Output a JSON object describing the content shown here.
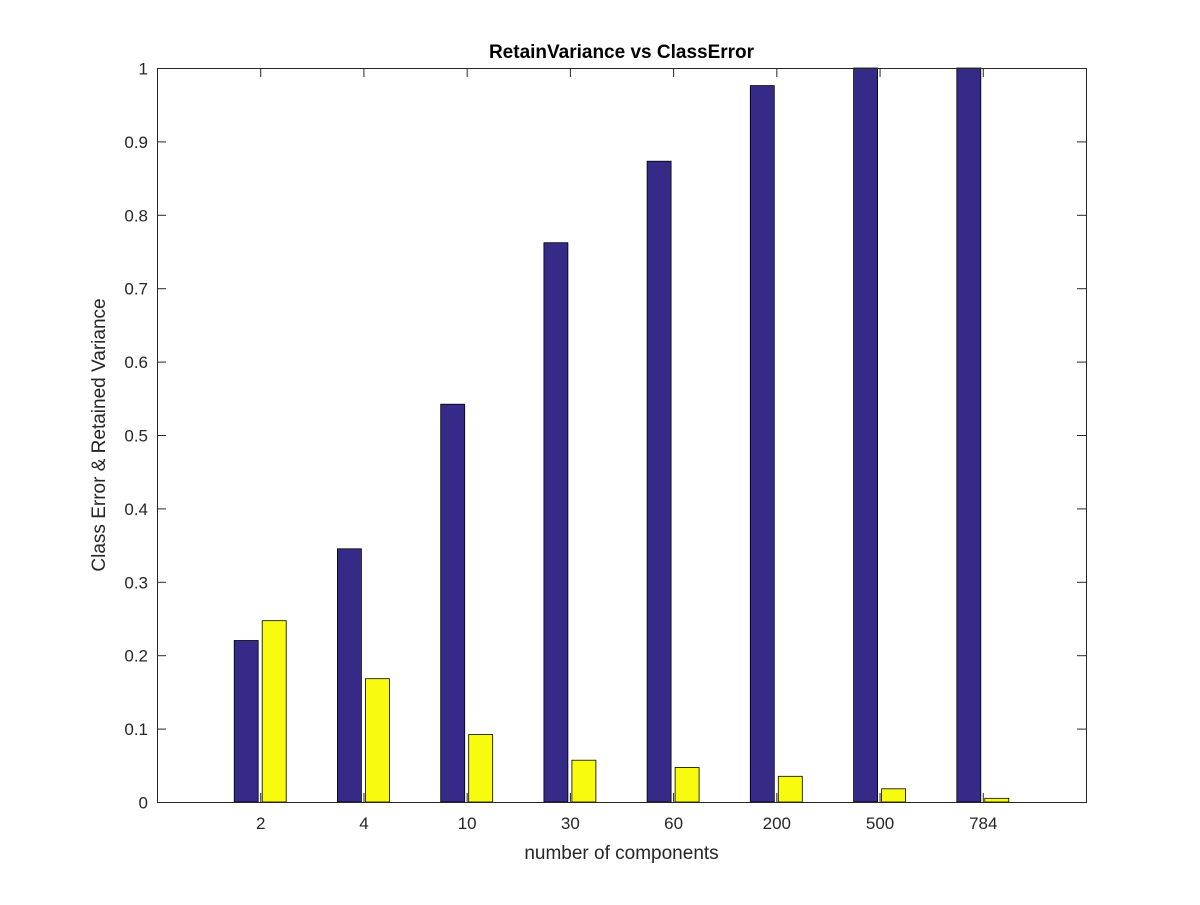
{
  "chart_data": {
    "type": "bar",
    "title": "RetainVariance vs ClassError",
    "xlabel": "number of components",
    "ylabel": "Class Error & Retained Variance",
    "categories": [
      "2",
      "4",
      "10",
      "30",
      "60",
      "200",
      "500",
      "784"
    ],
    "series": [
      {
        "color": "#352a87",
        "values": [
          0.22,
          0.345,
          0.542,
          0.762,
          0.873,
          0.976,
          1.0,
          1.0
        ]
      },
      {
        "color": "#f9fb0e",
        "values": [
          0.247,
          0.168,
          0.092,
          0.057,
          0.047,
          0.035,
          0.018,
          0.005
        ]
      }
    ],
    "ylim": [
      0,
      1
    ],
    "yticks": [
      "0",
      "0.1",
      "0.2",
      "0.3",
      "0.4",
      "0.5",
      "0.6",
      "0.7",
      "0.8",
      "0.9",
      "1"
    ],
    "grid": false,
    "legend": "none"
  }
}
